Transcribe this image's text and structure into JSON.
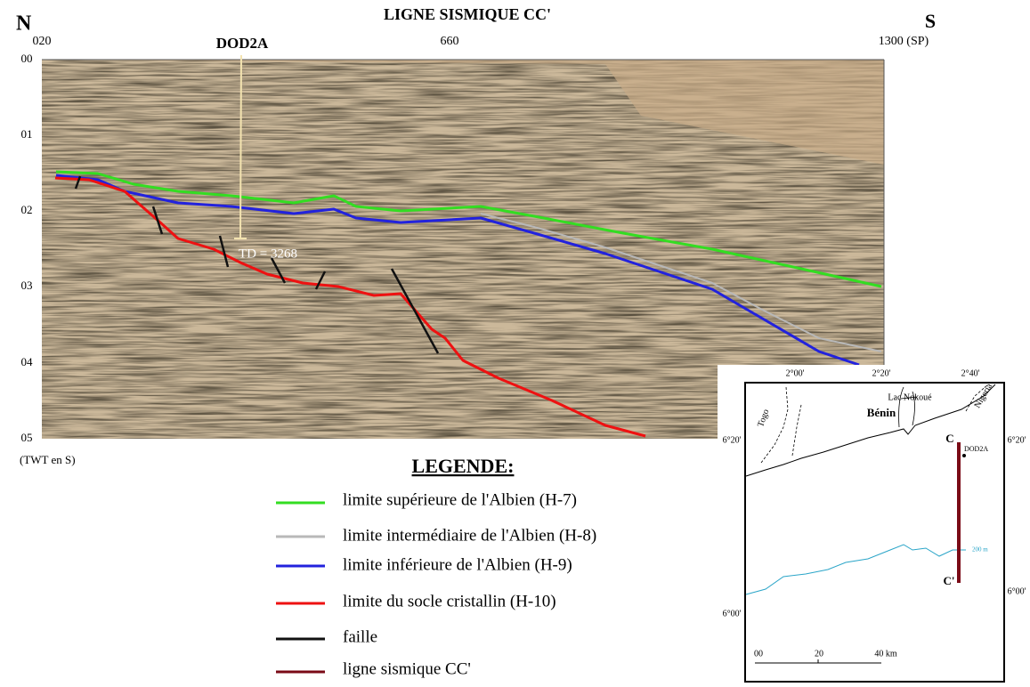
{
  "header": {
    "north": "N",
    "title": "LIGNE SISMIQUE CC'",
    "south": "S"
  },
  "section": {
    "shotpoints": [
      "020",
      "660",
      "1300 (SP)"
    ],
    "well": "DOD2A",
    "td": "TD = 3268",
    "twt_ticks": [
      "00",
      "01",
      "02",
      "03",
      "04",
      "05"
    ],
    "twt_unit": "(TWT en S)"
  },
  "legend": {
    "title": "LEGENDE:",
    "items": [
      {
        "label": "limite supérieure de l'Albien (H-7)",
        "color": "#33dd22"
      },
      {
        "label": "limite intermédiaire de l'Albien (H-8)",
        "color": "#b8b8b8"
      },
      {
        "label": "limite inférieure de l'Albien (H-9)",
        "color": "#2222dd"
      },
      {
        "label": "limite du socle cristallin (H-10)",
        "color": "#ee1111"
      },
      {
        "label": "faille",
        "color": "#111111"
      },
      {
        "label": "ligne sismique CC'",
        "color": "#7a0a16"
      }
    ]
  },
  "map": {
    "longitudes": [
      "2°00'",
      "2°20'",
      "2°40'"
    ],
    "latitudes_left": [
      "6°20'",
      "6°00'"
    ],
    "latitudes_right": [
      "6°20'",
      "6°00'"
    ],
    "lake": "Lac Nokoué",
    "country": "Bénin",
    "west": "Togo",
    "east": "Nigeria",
    "line_start": "C",
    "line_end": "C'",
    "well": "DOD2A",
    "isobath": "200 m",
    "scale": [
      "00",
      "20",
      "40 km"
    ]
  }
}
